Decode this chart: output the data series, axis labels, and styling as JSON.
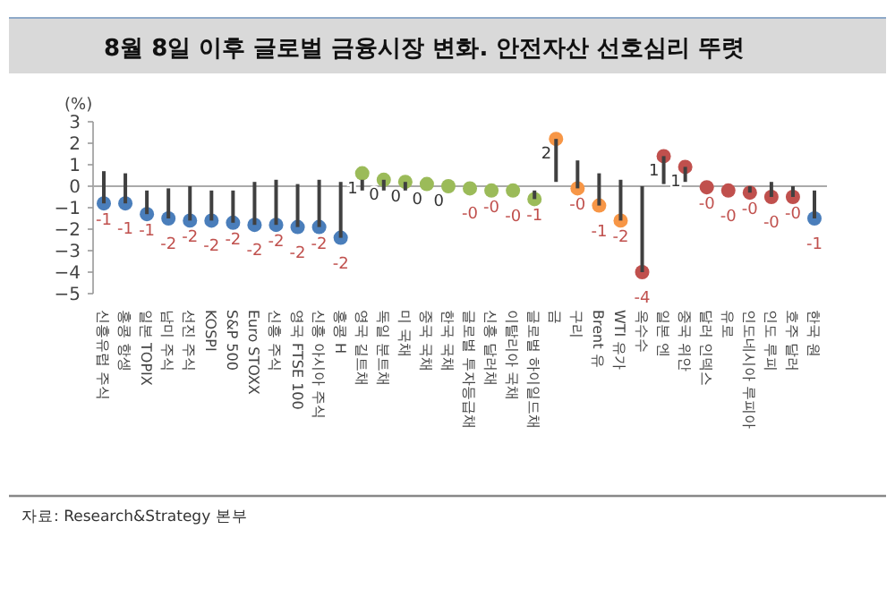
{
  "chart_data": {
    "type": "scatter",
    "title": "8월 8일 이후 글로벌 금융시장 변화. 안전자산 선호심리 뚜렷",
    "ylabel": "(%)",
    "categories": [
      "신흥유럽 주식",
      "홍콩 항셍",
      "일본 TOPIX",
      "남미 주식",
      "선진 주식",
      "KOSPI",
      "S&P 500",
      "Euro STOXX",
      "신흥 주식",
      "영국 FTSE 100",
      "신흥 아시아 주식",
      "홍콩 H",
      "영국 길트채",
      "독일 분트채",
      "미 국채",
      "중국 국채",
      "한국 국채",
      "글로벌 투자등급채",
      "신흥 달러채",
      "이탈리아 국채",
      "글로벌 하이일드채",
      "금",
      "구리",
      "Brent 유",
      "WTI 유가",
      "옥수수",
      "일본 엔",
      "중국 위안",
      "달러 인덱스",
      "유로",
      "인도네시아 루피아",
      "인도 루피",
      "호주 달러",
      "한국 원"
    ],
    "series": [
      {
        "type": "bar",
        "color": "#404040",
        "base": [
          -0.8,
          -0.8,
          -1.3,
          -1.5,
          -1.6,
          -1.6,
          -1.7,
          -1.8,
          -1.8,
          -1.9,
          -1.9,
          -2.4,
          -0.2,
          -0.2,
          -0.2,
          null,
          null,
          null,
          null,
          null,
          -0.6,
          0.2,
          -0.1,
          -0.9,
          -1.6,
          -4.0,
          0.1,
          0.2,
          null,
          null,
          -0.3,
          -0.5,
          -0.5,
          -1.5
        ],
        "values": [
          1.5,
          1.4,
          1.1,
          1.4,
          1.6,
          1.4,
          1.5,
          2.0,
          2.1,
          2.0,
          2.2,
          2.6,
          0.5,
          0.5,
          0.4,
          null,
          null,
          null,
          null,
          null,
          0.4,
          2.0,
          1.3,
          1.5,
          1.9,
          4.0,
          1.3,
          0.7,
          null,
          null,
          0.3,
          0.7,
          0.5,
          1.3
        ]
      },
      {
        "type": "scatter",
        "colors": [
          "#4a7ebb",
          "#4a7ebb",
          "#4a7ebb",
          "#4a7ebb",
          "#4a7ebb",
          "#4a7ebb",
          "#4a7ebb",
          "#4a7ebb",
          "#4a7ebb",
          "#4a7ebb",
          "#4a7ebb",
          "#4a7ebb",
          "#9bbb59",
          "#9bbb59",
          "#9bbb59",
          "#9bbb59",
          "#9bbb59",
          "#9bbb59",
          "#9bbb59",
          "#9bbb59",
          "#9bbb59",
          "#f79646",
          "#f79646",
          "#f79646",
          "#f79646",
          "#c0504d",
          "#c0504d",
          "#c0504d",
          "#c0504d",
          "#c0504d",
          "#c0504d",
          "#c0504d",
          "#c0504d",
          "#4a7ebb"
        ],
        "values": [
          -0.8,
          -0.8,
          -1.3,
          -1.5,
          -1.6,
          -1.6,
          -1.7,
          -1.8,
          -1.8,
          -1.9,
          -1.9,
          -2.4,
          0.6,
          0.3,
          0.2,
          0.1,
          0.0,
          -0.1,
          -0.2,
          -0.2,
          -0.6,
          2.2,
          -0.1,
          -0.9,
          -1.6,
          -4.0,
          1.4,
          0.9,
          -0.05,
          -0.2,
          -0.3,
          -0.5,
          -0.5,
          -1.5
        ],
        "value_labels": [
          "-1",
          "-1",
          "-1",
          "-2",
          "-2",
          "-2",
          "-2",
          "-2",
          "-2",
          "-2",
          "-2",
          "-2",
          "1",
          "0",
          "0",
          "0",
          "0",
          "-0",
          "-0",
          "-0",
          "-1",
          "2",
          "-0",
          "-1",
          "-2",
          "-4",
          "1",
          "1",
          "-0",
          "-0",
          "-0",
          "-0",
          "-0",
          "-1"
        ]
      }
    ],
    "marker": "circle",
    "ylim": [
      -5,
      3
    ],
    "yticks": [
      -5,
      -4,
      -3,
      -2,
      -1,
      0,
      1,
      2,
      3
    ],
    "ref_lines": [
      {
        "axis": "y",
        "value": 0,
        "color": "#aaaaaa"
      }
    ],
    "annotations": [
      "자료: Research&Strategy 본부"
    ]
  }
}
